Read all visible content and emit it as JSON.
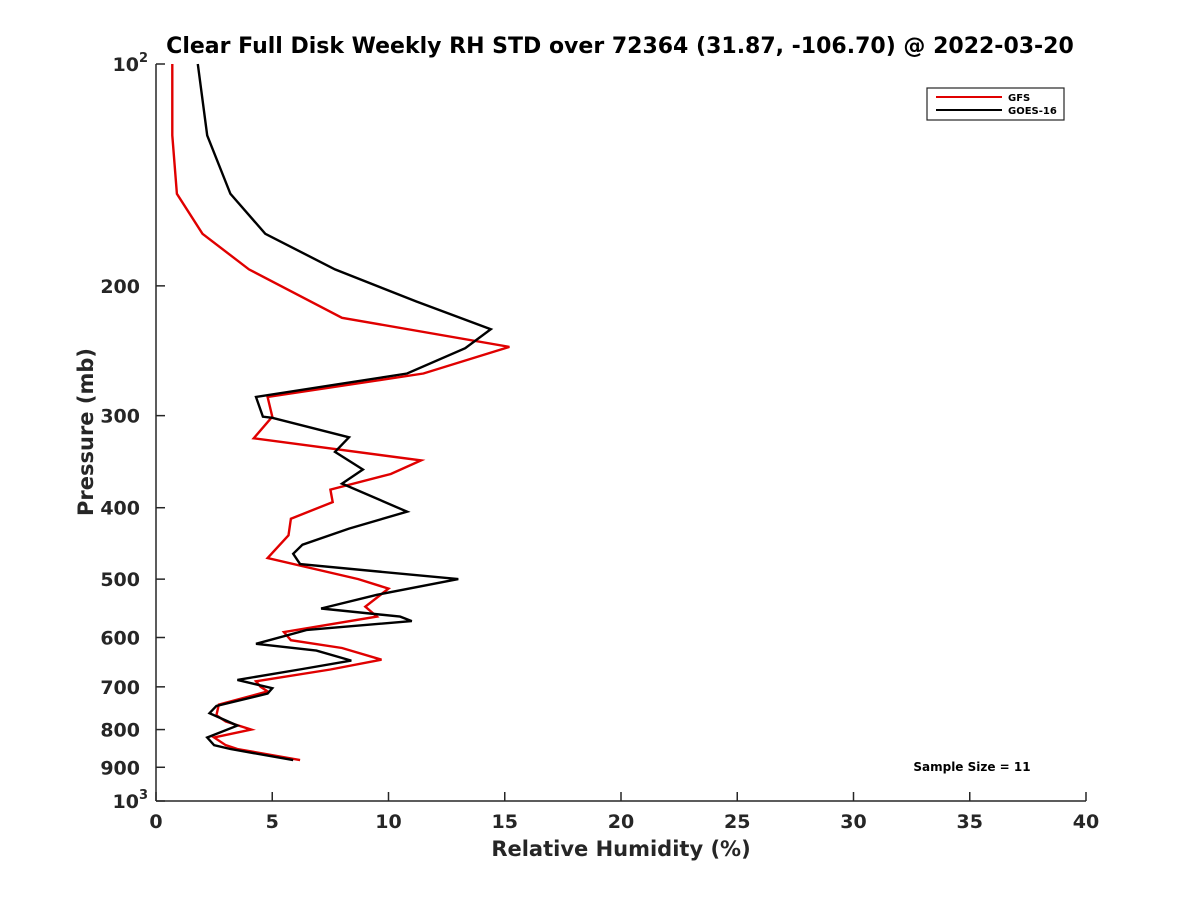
{
  "chart_data": {
    "type": "line",
    "title": "Clear Full Disk Weekly RH STD over 72364 (31.87, -106.70) @ 2022-03-20",
    "xlabel": "Relative Humidity (%)",
    "ylabel": "Pressure (mb)",
    "xlim": [
      0,
      40
    ],
    "ylim": [
      100,
      1000
    ],
    "y_scale": "log",
    "y_reversed": true,
    "x_ticks": [
      "0",
      "5",
      "10",
      "15",
      "20",
      "25",
      "30",
      "35",
      "40"
    ],
    "y_ticks": [
      {
        "value": 100,
        "base": "10",
        "exp": "2"
      },
      {
        "value": 200,
        "label": "200"
      },
      {
        "value": 300,
        "label": "300"
      },
      {
        "value": 400,
        "label": "400"
      },
      {
        "value": 500,
        "label": "500"
      },
      {
        "value": 600,
        "label": "600"
      },
      {
        "value": 700,
        "label": "700"
      },
      {
        "value": 800,
        "label": "800"
      },
      {
        "value": 900,
        "label": "900"
      },
      {
        "value": 1000,
        "base": "10",
        "exp": "3"
      }
    ],
    "grid": false,
    "legend_position": "top-right",
    "series": [
      {
        "name": "GFS",
        "color": "#e00000",
        "points": [
          [
            0.7,
            100
          ],
          [
            0.7,
            125
          ],
          [
            0.9,
            150
          ],
          [
            2.0,
            170
          ],
          [
            4.0,
            190
          ],
          [
            8.0,
            221
          ],
          [
            15.2,
            242
          ],
          [
            11.5,
            263
          ],
          [
            4.8,
            283
          ],
          [
            5.0,
            301
          ],
          [
            4.2,
            322
          ],
          [
            11.4,
            345
          ],
          [
            10.1,
            360
          ],
          [
            7.5,
            378
          ],
          [
            7.6,
            393
          ],
          [
            5.8,
            414
          ],
          [
            5.7,
            436
          ],
          [
            4.8,
            468
          ],
          [
            8.7,
            500
          ],
          [
            10.0,
            515
          ],
          [
            9.0,
            545
          ],
          [
            9.5,
            562
          ],
          [
            5.5,
            590
          ],
          [
            5.8,
            605
          ],
          [
            8.0,
            620
          ],
          [
            9.7,
            643
          ],
          [
            7.5,
            663
          ],
          [
            4.3,
            688
          ],
          [
            4.5,
            700
          ],
          [
            4.8,
            710
          ],
          [
            2.7,
            740
          ],
          [
            2.6,
            765
          ],
          [
            3.0,
            780
          ],
          [
            4.1,
            800
          ],
          [
            2.5,
            820
          ],
          [
            3.0,
            840
          ],
          [
            3.5,
            850
          ],
          [
            6.2,
            880
          ]
        ]
      },
      {
        "name": "GOES-16",
        "color": "#000000",
        "points": [
          [
            1.8,
            100
          ],
          [
            2.2,
            125
          ],
          [
            3.2,
            150
          ],
          [
            4.7,
            170
          ],
          [
            7.7,
            190
          ],
          [
            11.2,
            210
          ],
          [
            14.4,
            229
          ],
          [
            13.3,
            243
          ],
          [
            10.8,
            263
          ],
          [
            4.3,
            283
          ],
          [
            4.6,
            301
          ],
          [
            5.0,
            302
          ],
          [
            8.3,
            321
          ],
          [
            7.7,
            336
          ],
          [
            8.9,
            355
          ],
          [
            8.0,
            371
          ],
          [
            10.8,
            405
          ],
          [
            8.3,
            427
          ],
          [
            6.3,
            449
          ],
          [
            5.9,
            462
          ],
          [
            6.2,
            477
          ],
          [
            13.0,
            500
          ],
          [
            9.5,
            525
          ],
          [
            7.1,
            548
          ],
          [
            10.5,
            562
          ],
          [
            11.0,
            570
          ],
          [
            6.5,
            586
          ],
          [
            4.3,
            612
          ],
          [
            6.9,
            625
          ],
          [
            8.4,
            645
          ],
          [
            6.3,
            662
          ],
          [
            3.5,
            685
          ],
          [
            5.0,
            703
          ],
          [
            4.8,
            715
          ],
          [
            2.6,
            743
          ],
          [
            2.3,
            760
          ],
          [
            3.5,
            790
          ],
          [
            2.2,
            820
          ],
          [
            2.5,
            840
          ],
          [
            3.2,
            850
          ],
          [
            5.9,
            880
          ]
        ]
      }
    ],
    "annotation": "Sample Size = 11"
  }
}
